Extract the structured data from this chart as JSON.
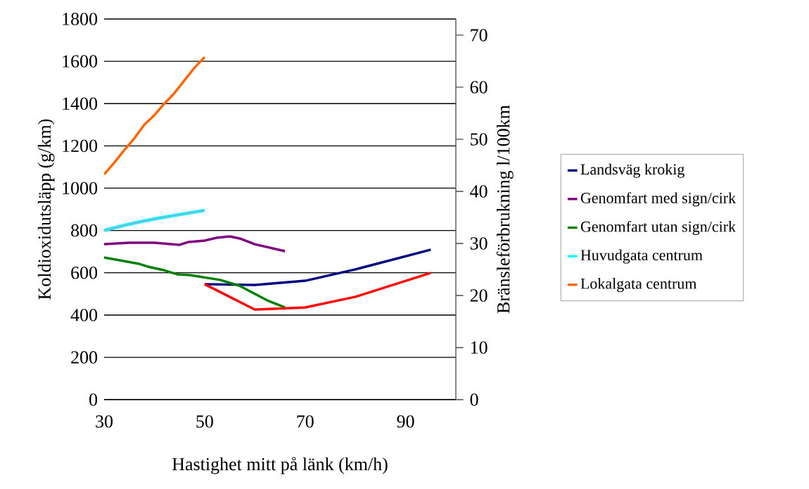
{
  "chart_data": {
    "type": "line",
    "xlabel": "Hastighet mitt på länk (km/h)",
    "ylabel": "Koldioxidutsläpp (g/km)",
    "y2label": "Bränsleförbrukning l/100km",
    "xlim": [
      30,
      100
    ],
    "xticks": [
      30,
      50,
      70,
      90
    ],
    "ylim": [
      0,
      1800
    ],
    "yticks": [
      0,
      200,
      400,
      600,
      800,
      1000,
      1200,
      1400,
      1600,
      1800
    ],
    "y2lim": [
      0,
      73.1
    ],
    "y2ticks": [
      0,
      10,
      20,
      30,
      40,
      50,
      60,
      70
    ],
    "grid": "y",
    "legend": "right",
    "marker": "none",
    "line_style": "solid",
    "series": [
      {
        "name": "Landsväg krokig",
        "color": "#000080",
        "x": [
          50,
          60,
          70,
          80,
          95
        ],
        "values": [
          546,
          542,
          562,
          616,
          709
        ]
      },
      {
        "name": "Genomfart med sign/cirk",
        "color": "#800080",
        "x": [
          30,
          35,
          40,
          45,
          46.7,
          50,
          52.3,
          55,
          57,
          60,
          66
        ],
        "values": [
          735,
          742,
          742,
          732,
          745,
          752,
          765,
          772,
          762,
          735,
          702
        ]
      },
      {
        "name": "Genomfart utan sign/cirk",
        "color": "#008000",
        "x": [
          30,
          37,
          38.7,
          41.9,
          44.7,
          47.1,
          53.1,
          56.9,
          59.3,
          62.5,
          66
        ],
        "values": [
          672,
          642,
          629,
          612,
          592,
          589,
          566,
          539,
          509,
          469,
          436
        ]
      },
      {
        "name": "Huvudgata centrum",
        "color": "#00ffff",
        "x": [
          30,
          35,
          40,
          45,
          50
        ],
        "values": [
          800,
          830,
          855,
          875,
          895
        ]
      },
      {
        "name": "Lokalgata centrum",
        "color": "#ff6600",
        "x": [
          30,
          32,
          34,
          36,
          38,
          40,
          42,
          44,
          46,
          48,
          50
        ],
        "values": [
          1065,
          1120,
          1180,
          1235,
          1300,
          1345,
          1400,
          1450,
          1510,
          1570,
          1620
        ]
      },
      {
        "color": "#99a8cc",
        "x": [
          30,
          35,
          40,
          45,
          50
        ],
        "values": [
          800,
          830,
          855,
          875,
          895
        ]
      },
      {
        "color": "#ff0000",
        "x": [
          50,
          60,
          70,
          80,
          95
        ],
        "values": [
          546,
          426,
          436,
          486,
          599
        ]
      }
    ]
  }
}
